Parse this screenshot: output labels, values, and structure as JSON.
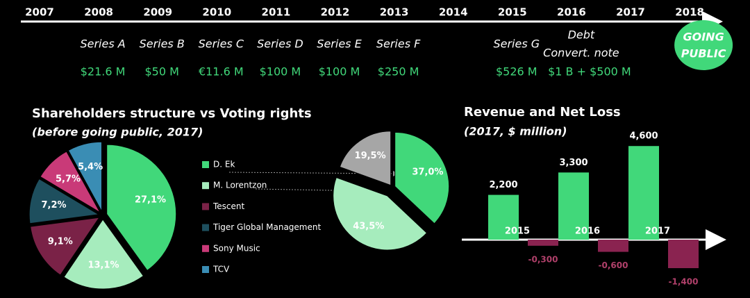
{
  "timeline": {
    "years": [
      2007,
      2008,
      2009,
      2010,
      2011,
      2012,
      2013,
      2014,
      2015,
      2016,
      2017,
      2018
    ],
    "events": [
      {
        "year": 2008,
        "lines": [
          "Series A"
        ],
        "amount": "$21.6 M"
      },
      {
        "year": 2009,
        "lines": [
          "Series B"
        ],
        "amount": "$50 M"
      },
      {
        "year": 2010,
        "lines": [
          "Series C"
        ],
        "amount": "€11.6 M"
      },
      {
        "year": 2011,
        "lines": [
          "Series D"
        ],
        "amount": "$100 M"
      },
      {
        "year": 2012,
        "lines": [
          "Series E"
        ],
        "amount": "$100 M"
      },
      {
        "year": 2013,
        "lines": [
          "Series F"
        ],
        "amount": "$250 M"
      },
      {
        "year": 2015,
        "lines": [
          "Series G"
        ],
        "amount": "$526 M"
      },
      {
        "year": 2016,
        "lines": [
          "Debt",
          "Convert. note"
        ],
        "amount": "$1 B + $500 M"
      },
      {
        "year": 2018,
        "lines": [
          "GOING",
          "PUBLIC"
        ]
      }
    ]
  },
  "chart_data": [
    {
      "type": "pie",
      "title": "Shareholders structure vs Voting rights",
      "subtitle": "(before going public, 2017)",
      "categories": [
        "D. Ek",
        "M. Lorentzon",
        "Tescent",
        "Tiger Global Management",
        "Sony Music",
        "TCV"
      ],
      "values": [
        27.1,
        13.1,
        9.1,
        7.2,
        5.7,
        5.4
      ],
      "value_labels": [
        "27,1%",
        "13,1%",
        "9,1%",
        "7,2%",
        "5,7%",
        "5,4%"
      ],
      "colors": [
        "#41d87a",
        "#a6ecbd",
        "#7a2247",
        "#1e4f5e",
        "#c93a78",
        "#3a8db4"
      ]
    },
    {
      "type": "pie",
      "values": [
        37.0,
        43.5,
        19.5
      ],
      "value_labels": [
        "37,0%",
        "43,5%",
        "19,5%"
      ],
      "colors": [
        "#41d87a",
        "#a6ecbd",
        "#a6a6a6"
      ]
    },
    {
      "type": "bar",
      "title": "Revenue and Net Loss",
      "subtitle": "(2017, $ million)",
      "categories": [
        "2015",
        "2016",
        "2017"
      ],
      "series": [
        {
          "color": "#41d87a",
          "values": [
            2200,
            3300,
            4600
          ],
          "value_labels": [
            "2,200",
            "3,300",
            "4,600"
          ]
        },
        {
          "color": "#8a2350",
          "values": [
            -300,
            -600,
            -1400
          ],
          "value_labels": [
            "-0,300",
            "-0,600",
            "-1,400"
          ]
        }
      ],
      "ylim": [
        -1400,
        4600
      ]
    }
  ]
}
